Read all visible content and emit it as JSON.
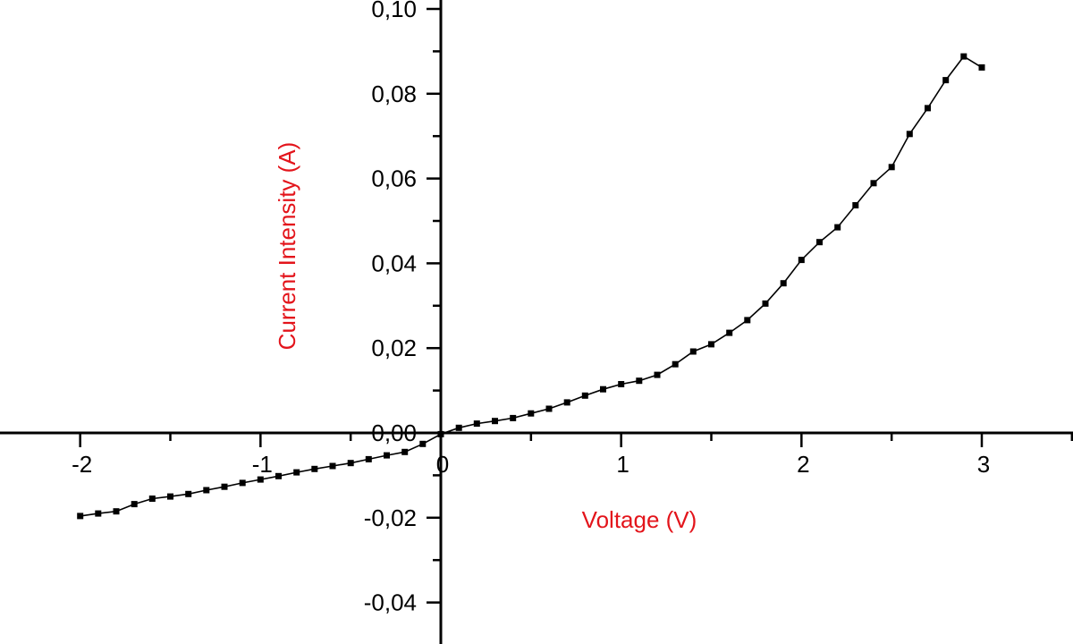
{
  "chart_data": {
    "type": "line",
    "xlabel": "Voltage (V)",
    "ylabel": "Current Intensity (A)",
    "xlim": [
      -2.45,
      3.5
    ],
    "ylim": [
      -0.049,
      0.101
    ],
    "x_ticks": [
      -2,
      -1,
      0,
      1,
      2,
      3
    ],
    "x_tick_labels": [
      "-2",
      "-1",
      "0",
      "1",
      "2",
      "3"
    ],
    "y_ticks": [
      -0.04,
      -0.02,
      0.0,
      0.02,
      0.04,
      0.06,
      0.08,
      0.1
    ],
    "y_tick_labels": [
      "-0,04",
      "-0,02",
      "0,00",
      "0,02",
      "0,04",
      "0,06",
      "0,08",
      "0,10"
    ],
    "grid": false,
    "legend": "none",
    "series": [
      {
        "marker": "square",
        "color": "#000000",
        "x": [
          -2.0,
          -1.9,
          -1.8,
          -1.7,
          -1.6,
          -1.5,
          -1.4,
          -1.3,
          -1.2,
          -1.1,
          -1.0,
          -0.9,
          -0.8,
          -0.7,
          -0.6,
          -0.5,
          -0.4,
          -0.3,
          -0.2,
          -0.1,
          0.0,
          0.1,
          0.2,
          0.3,
          0.4,
          0.5,
          0.6,
          0.7,
          0.8,
          0.9,
          1.0,
          1.1,
          1.2,
          1.3,
          1.4,
          1.5,
          1.6,
          1.7,
          1.8,
          1.9,
          2.0,
          2.1,
          2.2,
          2.3,
          2.4,
          2.5,
          2.6,
          2.7,
          2.8,
          2.9,
          3.0
        ],
        "y": [
          -0.0196,
          -0.019,
          -0.0185,
          -0.0168,
          -0.0155,
          -0.015,
          -0.0144,
          -0.0135,
          -0.0127,
          -0.0118,
          -0.011,
          -0.0102,
          -0.0093,
          -0.0085,
          -0.0078,
          -0.0071,
          -0.0062,
          -0.0053,
          -0.0045,
          -0.0026,
          -0.0003,
          0.0012,
          0.0022,
          0.0028,
          0.0035,
          0.0046,
          0.0057,
          0.0072,
          0.0088,
          0.0103,
          0.0115,
          0.0123,
          0.0137,
          0.0162,
          0.0192,
          0.0209,
          0.0236,
          0.0266,
          0.0305,
          0.0353,
          0.0408,
          0.045,
          0.0485,
          0.0537,
          0.0589,
          0.0627,
          0.0705,
          0.0766,
          0.0832,
          0.0888,
          0.0862
        ]
      }
    ]
  },
  "colors": {
    "axis": "#000000",
    "axis_title": "#e3141b",
    "series": "#000000"
  }
}
